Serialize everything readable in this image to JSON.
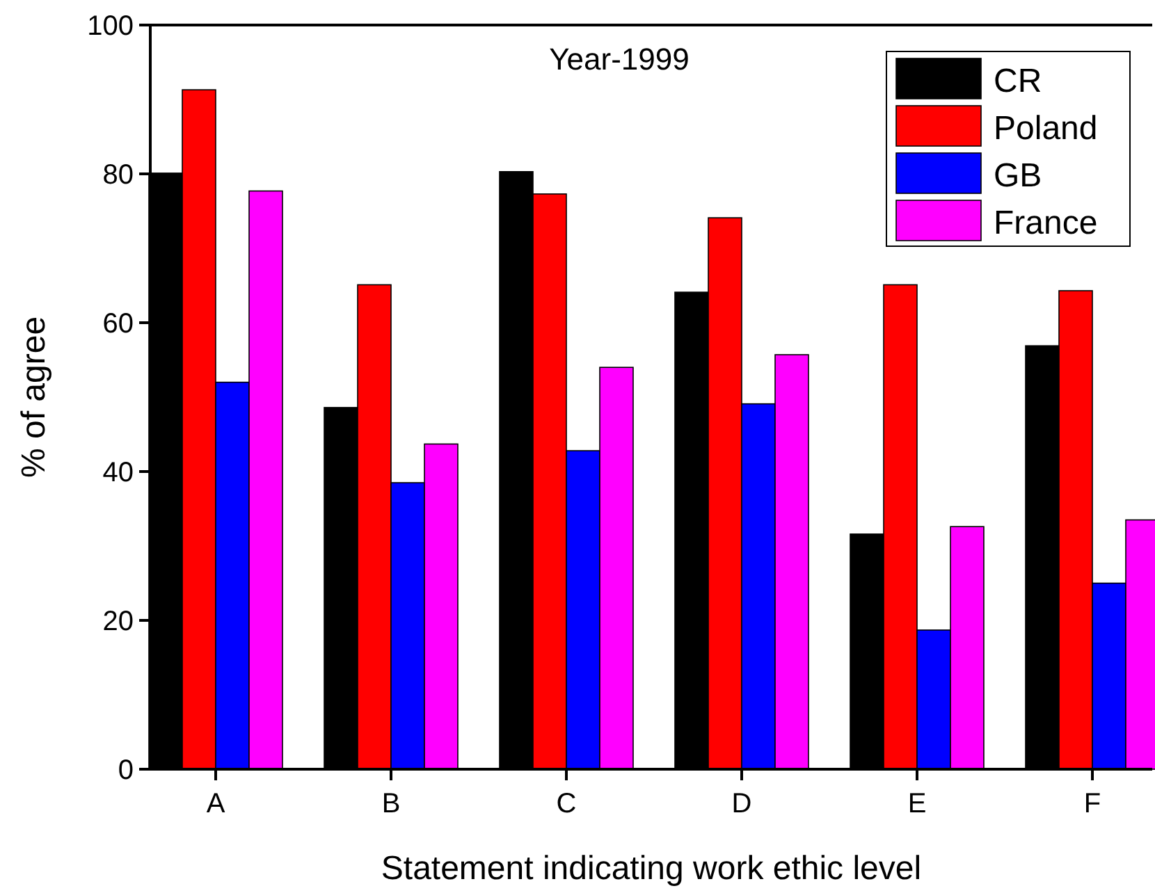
{
  "chart_data": {
    "type": "bar",
    "title": "Year-1999",
    "xlabel": "Statement indicating work ethic level",
    "ylabel": "% of agree",
    "categories": [
      "A",
      "B",
      "C",
      "D",
      "E",
      "F"
    ],
    "series": [
      {
        "name": "CR",
        "color": "#000000",
        "values": [
          80.1,
          48.6,
          80.3,
          64.1,
          31.6,
          56.9
        ]
      },
      {
        "name": "Poland",
        "color": "#ff0000",
        "values": [
          91.3,
          65.1,
          77.3,
          74.1,
          65.1,
          64.3
        ]
      },
      {
        "name": "GB",
        "color": "#0000ff",
        "values": [
          52.0,
          38.5,
          42.8,
          49.1,
          18.7,
          25.0
        ]
      },
      {
        "name": "France",
        "color": "#ff00ff",
        "values": [
          77.7,
          43.7,
          54.0,
          55.7,
          32.6,
          33.5
        ]
      }
    ],
    "ylim": [
      0,
      100
    ],
    "yticks": [
      0,
      20,
      40,
      60,
      80,
      100
    ],
    "grid": false,
    "legend": "top right"
  }
}
